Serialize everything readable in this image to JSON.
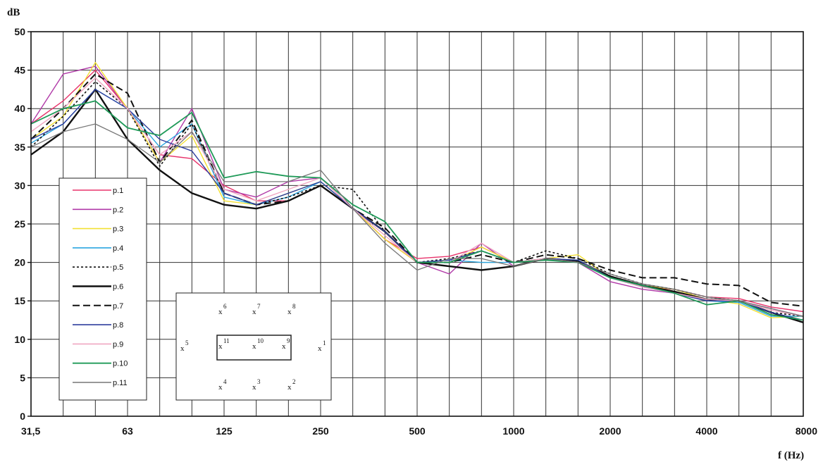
{
  "chart_data": {
    "type": "line",
    "ylabel": "dB",
    "xlabel": "f (Hz)",
    "ylim": [
      0,
      50
    ],
    "y_ticks": [
      0,
      5,
      10,
      15,
      20,
      25,
      30,
      35,
      40,
      45,
      50
    ],
    "x": [
      "31,5",
      "40",
      "50",
      "63",
      "80",
      "100",
      "125",
      "160",
      "200",
      "250",
      "315",
      "400",
      "500",
      "630",
      "800",
      "1000",
      "1250",
      "1600",
      "2000",
      "2500",
      "3150",
      "4000",
      "5000",
      "6300",
      "8000"
    ],
    "x_tick_labels": [
      "31,5",
      "63",
      "125",
      "250",
      "500",
      "1000",
      "2000",
      "4000",
      "8000"
    ],
    "x_tick_positions": [
      0,
      3,
      6,
      9,
      12,
      15,
      18,
      21,
      24
    ],
    "grid": true,
    "legend_position": "left",
    "series": [
      {
        "name": "p.1",
        "color": "#e8336b",
        "dash": "solid",
        "width": 1.4,
        "values": [
          38,
          41,
          45,
          40,
          34,
          33.5,
          30,
          28,
          28,
          30,
          27,
          23,
          20.5,
          20.8,
          22,
          20,
          20.5,
          20,
          18,
          16.8,
          16.5,
          15.5,
          15.3,
          14.2,
          13.6
        ]
      },
      {
        "name": "p.2",
        "color": "#b13aa8",
        "dash": "solid",
        "width": 1.4,
        "values": [
          38,
          44.5,
          45.5,
          40,
          33,
          40,
          29.5,
          28.5,
          30.5,
          31,
          27,
          23,
          20,
          18.5,
          22.5,
          19.5,
          20.5,
          20,
          17.5,
          16.5,
          16,
          15,
          15,
          14,
          13
        ]
      },
      {
        "name": "p.3",
        "color": "#f2e034",
        "dash": "solid",
        "width": 1.4,
        "values": [
          36,
          39,
          46,
          40,
          33,
          36.5,
          28,
          27.5,
          29,
          30.5,
          27,
          23,
          20,
          20,
          22,
          20,
          20.5,
          21,
          18,
          17,
          16.5,
          15.2,
          14.6,
          12.8,
          13
        ]
      },
      {
        "name": "p.4",
        "color": "#2ba6e0",
        "dash": "solid",
        "width": 1.4,
        "values": [
          35.5,
          38,
          42.5,
          40,
          35,
          38,
          28.5,
          27.5,
          28.5,
          30.5,
          27,
          24,
          20,
          20.3,
          20,
          20,
          20.3,
          20.3,
          18,
          16.8,
          16,
          15,
          14.8,
          13,
          13
        ]
      },
      {
        "name": "p.5",
        "color": "#111111",
        "dash": "3,3",
        "width": 1.6,
        "values": [
          35,
          39,
          43.5,
          40,
          32.5,
          38,
          29,
          27.5,
          28.5,
          30,
          29.5,
          24,
          20,
          20.5,
          21.5,
          20,
          21.5,
          20.5,
          18.5,
          17.2,
          16.5,
          15.5,
          15,
          13.5,
          13
        ]
      },
      {
        "name": "p.6",
        "color": "#111111",
        "dash": "solid",
        "width": 2.4,
        "values": [
          34,
          37,
          42.5,
          36,
          32,
          29,
          27.5,
          27,
          28,
          30,
          27,
          24,
          20,
          19.5,
          19,
          19.5,
          20.5,
          20.2,
          18.2,
          17,
          16.2,
          15.2,
          15,
          13.5,
          12.2
        ]
      },
      {
        "name": "p.7",
        "color": "#111111",
        "dash": "10,5",
        "width": 2.0,
        "values": [
          36,
          40,
          44.5,
          42,
          33,
          38.5,
          29,
          27.5,
          28,
          30,
          27,
          24.5,
          20,
          20,
          21,
          20,
          21,
          20.5,
          19,
          18,
          18,
          17.2,
          17,
          14.8,
          14.3
        ]
      },
      {
        "name": "p.8",
        "color": "#2e3f9e",
        "dash": "solid",
        "width": 1.4,
        "values": [
          36,
          38,
          42.5,
          40,
          36,
          34.5,
          29,
          27.5,
          29,
          30.5,
          27,
          24,
          20,
          20.3,
          21.5,
          20,
          20.5,
          20.3,
          18,
          17,
          16,
          15,
          15,
          13.5,
          12.5
        ]
      },
      {
        "name": "p.9",
        "color": "#f0a7c2",
        "dash": "solid",
        "width": 1.4,
        "values": [
          37,
          40,
          44,
          40,
          34,
          37,
          29.5,
          28,
          29.5,
          31,
          27,
          23.5,
          20,
          20,
          22.5,
          20,
          20.5,
          20,
          18,
          16.8,
          16,
          15.2,
          15,
          13.8,
          13
        ]
      },
      {
        "name": "p.10",
        "color": "#1f9a58",
        "dash": "solid",
        "width": 1.8,
        "values": [
          38,
          40,
          41,
          37.5,
          36.5,
          39.5,
          31,
          31.8,
          31.2,
          31,
          27.5,
          25.3,
          20,
          20,
          21.5,
          20,
          20.3,
          20,
          18,
          17,
          16,
          14.5,
          15,
          13.2,
          12.5
        ]
      },
      {
        "name": "p.11",
        "color": "#777777",
        "dash": "solid",
        "width": 1.3,
        "values": [
          35,
          37,
          38,
          36,
          33,
          37,
          30.5,
          30.5,
          30.5,
          32,
          27,
          22.5,
          19,
          20.5,
          20.5,
          19.5,
          20.5,
          20,
          18.5,
          17.2,
          16.5,
          15.5,
          15,
          14,
          13
        ]
      }
    ]
  },
  "plan_markers": [
    {
      "mark": "x",
      "num": "6"
    },
    {
      "mark": "x",
      "num": "7"
    },
    {
      "mark": "x",
      "num": "8"
    },
    {
      "mark": "x",
      "num": "5"
    },
    {
      "mark": "x",
      "num": "11"
    },
    {
      "mark": "x",
      "num": "10"
    },
    {
      "mark": "x",
      "num": "9"
    },
    {
      "mark": "x",
      "num": "1"
    },
    {
      "mark": "x",
      "num": "4"
    },
    {
      "mark": "x",
      "num": "3"
    },
    {
      "mark": "x",
      "num": "2"
    }
  ]
}
